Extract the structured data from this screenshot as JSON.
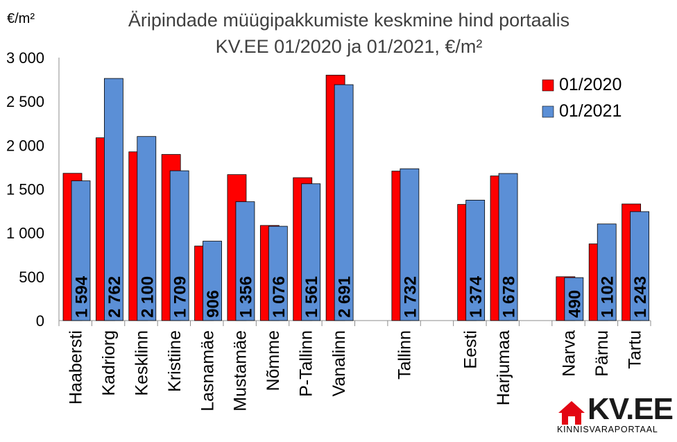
{
  "chart_data": {
    "type": "bar",
    "title": "Äripindade müügipakkumiste keskmine hind portaalis",
    "subtitle": "KV.EE 01/2020 ja 01/2021, €/m²",
    "ylabel": "€/m²",
    "ylim": [
      0,
      3000
    ],
    "yticks": [
      "0",
      "500",
      "1 000",
      "1 500",
      "2 000",
      "2 500",
      "3 000"
    ],
    "legend_position": "top-right",
    "categories": [
      "Haabersti",
      "Kadriorg",
      "Kesklinn",
      "Kristiine",
      "Lasnamäe",
      "Mustamäe",
      "Nõmme",
      "P-Tallinn",
      "Vanalinn",
      "Tallinn",
      "Eesti",
      "Harjumaa",
      "Narva",
      "Pärnu",
      "Tartu"
    ],
    "series": [
      {
        "name": "01/2020",
        "color": "#ff0000",
        "values": [
          1680,
          2085,
          1925,
          1895,
          850,
          1665,
          1085,
          1630,
          2800,
          1705,
          1325,
          1650,
          500,
          875,
          1330
        ]
      },
      {
        "name": "01/2021",
        "color": "#5b8fd6",
        "values": [
          1594,
          2762,
          2100,
          1709,
          906,
          1356,
          1076,
          1561,
          2691,
          1732,
          1374,
          1678,
          490,
          1102,
          1243
        ],
        "data_labels": [
          "1 594",
          "2 762",
          "2 100",
          "1 709",
          "906",
          "1 356",
          "1 076",
          "1 561",
          "2 691",
          "1 732",
          "1 374",
          "1 678",
          "490",
          "1 102",
          "1 243"
        ]
      }
    ],
    "grid": false
  },
  "logo": {
    "text": "KV.EE",
    "sub": "KINNISVARAPORTAAL",
    "color": "#e30613"
  }
}
